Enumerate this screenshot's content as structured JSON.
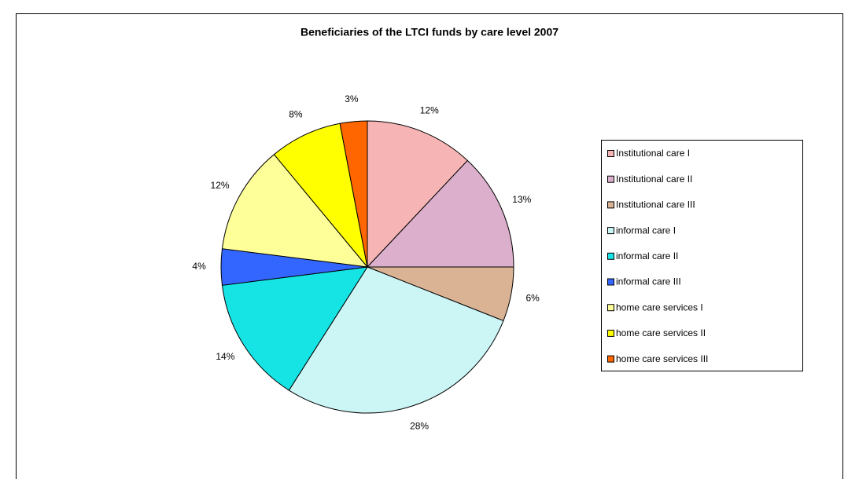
{
  "chart_data": {
    "type": "pie",
    "title": "Beneficiaries of the LTCI funds by care level 2007",
    "categories": [
      "Institutional care I",
      "Institutional care II",
      "Institutional care III",
      "informal care I",
      "informal care II",
      "informal care III",
      "home care services I",
      "home care services II",
      "home care services III"
    ],
    "values": [
      12,
      13,
      6,
      28,
      14,
      4,
      12,
      8,
      3
    ],
    "value_labels": [
      "12%",
      "13%",
      "6%",
      "28%",
      "14%",
      "4%",
      "12%",
      "8%",
      "3%"
    ],
    "colors": [
      "#f6b4b4",
      "#dcb0cc",
      "#d9b394",
      "#ccf6f6",
      "#16e4e4",
      "#3366ff",
      "#ffff99",
      "#ffff00",
      "#ff6600"
    ],
    "legend": "right"
  }
}
